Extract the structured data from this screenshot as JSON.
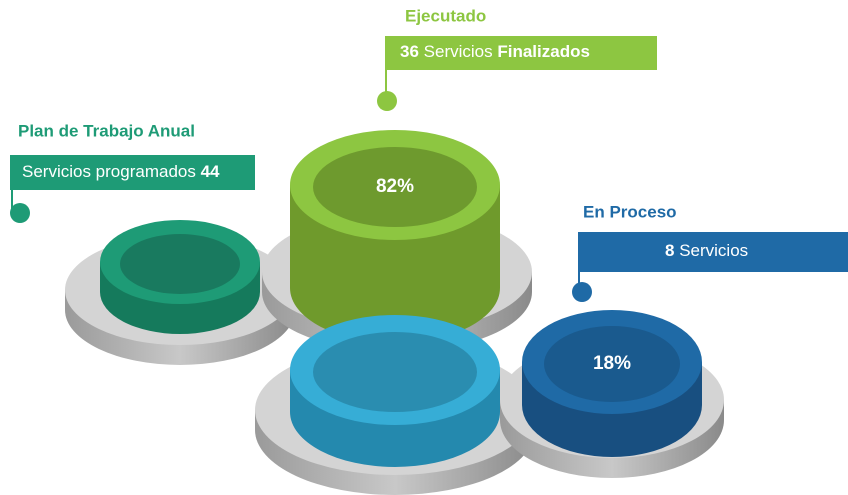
{
  "plan": {
    "title": "Plan de Trabajo Anual",
    "label": "Servicios programados",
    "count": 44
  },
  "executed": {
    "title": "Ejecutado",
    "count": 36,
    "label": "Servicios",
    "label_strong": "Finalizados",
    "percent": "82%"
  },
  "in_process": {
    "title": "En Proceso",
    "count": 8,
    "label": "Servicios",
    "percent": "18%"
  }
}
